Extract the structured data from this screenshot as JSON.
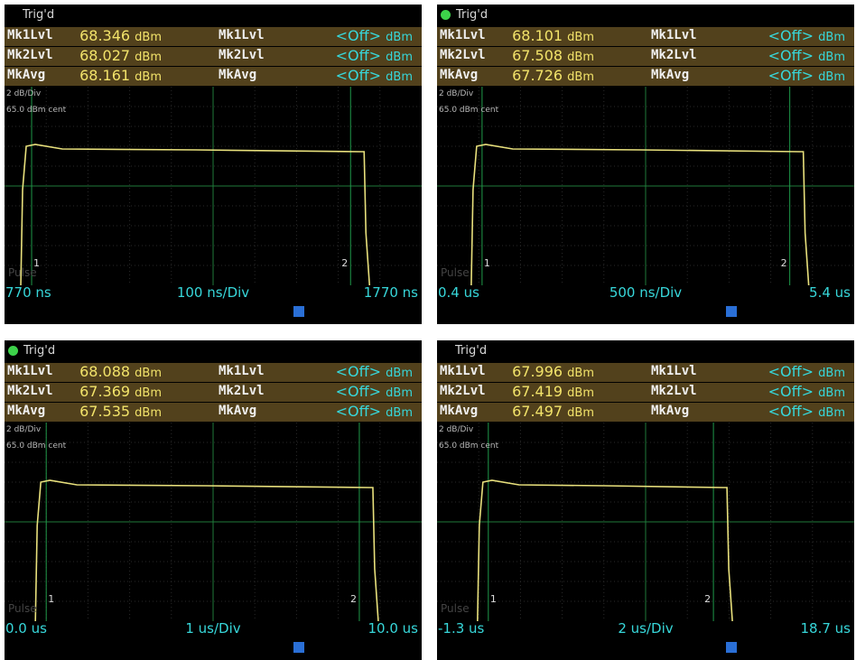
{
  "scope_unit": "dBm",
  "off_value": "<Off>",
  "labels": {
    "mk1": "Mk1Lvl",
    "mk2": "Mk2Lvl",
    "avg": "MkAvg",
    "pulse": "Pulse"
  },
  "scale": {
    "per_div": "2 dB/Div",
    "center": "65.0 dBm cent"
  },
  "colors": {
    "trace": "#e8e07c",
    "value": "#f2e36a",
    "off": "#37d7da",
    "row_bg": "#52411c",
    "grid": "#1f7a3a",
    "trig": "#3dd24a"
  },
  "panels": [
    {
      "trig_label": "Trig'd",
      "trig_dot": false,
      "mk1_value": "68.346",
      "mk2_value": "68.027",
      "avg_value": "68.161",
      "x_left": "770 ns",
      "x_mid": "100 ns/Div",
      "x_right": "1770 ns",
      "marker1": "1",
      "marker2": "2",
      "trace": {
        "rise": 0.052,
        "fall": 0.862,
        "top_start": 0.86,
        "top_end": 0.76
      }
    },
    {
      "trig_label": "Trig'd",
      "trig_dot": true,
      "mk1_value": "68.101",
      "mk2_value": "67.508",
      "avg_value": "67.726",
      "x_left": "0.4 us",
      "x_mid": "500 ns/Div",
      "x_right": "5.4 us",
      "marker1": "1",
      "marker2": "2",
      "trace": {
        "rise": 0.095,
        "fall": 0.878,
        "top_start": 0.86,
        "top_end": 0.75
      }
    },
    {
      "trig_label": "Trig'd",
      "trig_dot": true,
      "mk1_value": "68.088",
      "mk2_value": "67.369",
      "avg_value": "67.535",
      "x_left": "0.0 us",
      "x_mid": "1 us/Div",
      "x_right": "10.0 us",
      "marker1": "1",
      "marker2": "2",
      "trace": {
        "rise": 0.087,
        "fall": 0.883,
        "top_start": 0.87,
        "top_end": 0.77
      }
    },
    {
      "trig_label": "Trig'd",
      "trig_dot": false,
      "mk1_value": "67.996",
      "mk2_value": "67.419",
      "avg_value": "67.497",
      "x_left": "-1.3 us",
      "x_mid": "2 us/Div",
      "x_right": "18.7 us",
      "marker1": "1",
      "marker2": "2",
      "trace": {
        "rise": 0.11,
        "fall": 0.695,
        "top_start": 0.87,
        "top_end": 0.77
      }
    }
  ]
}
